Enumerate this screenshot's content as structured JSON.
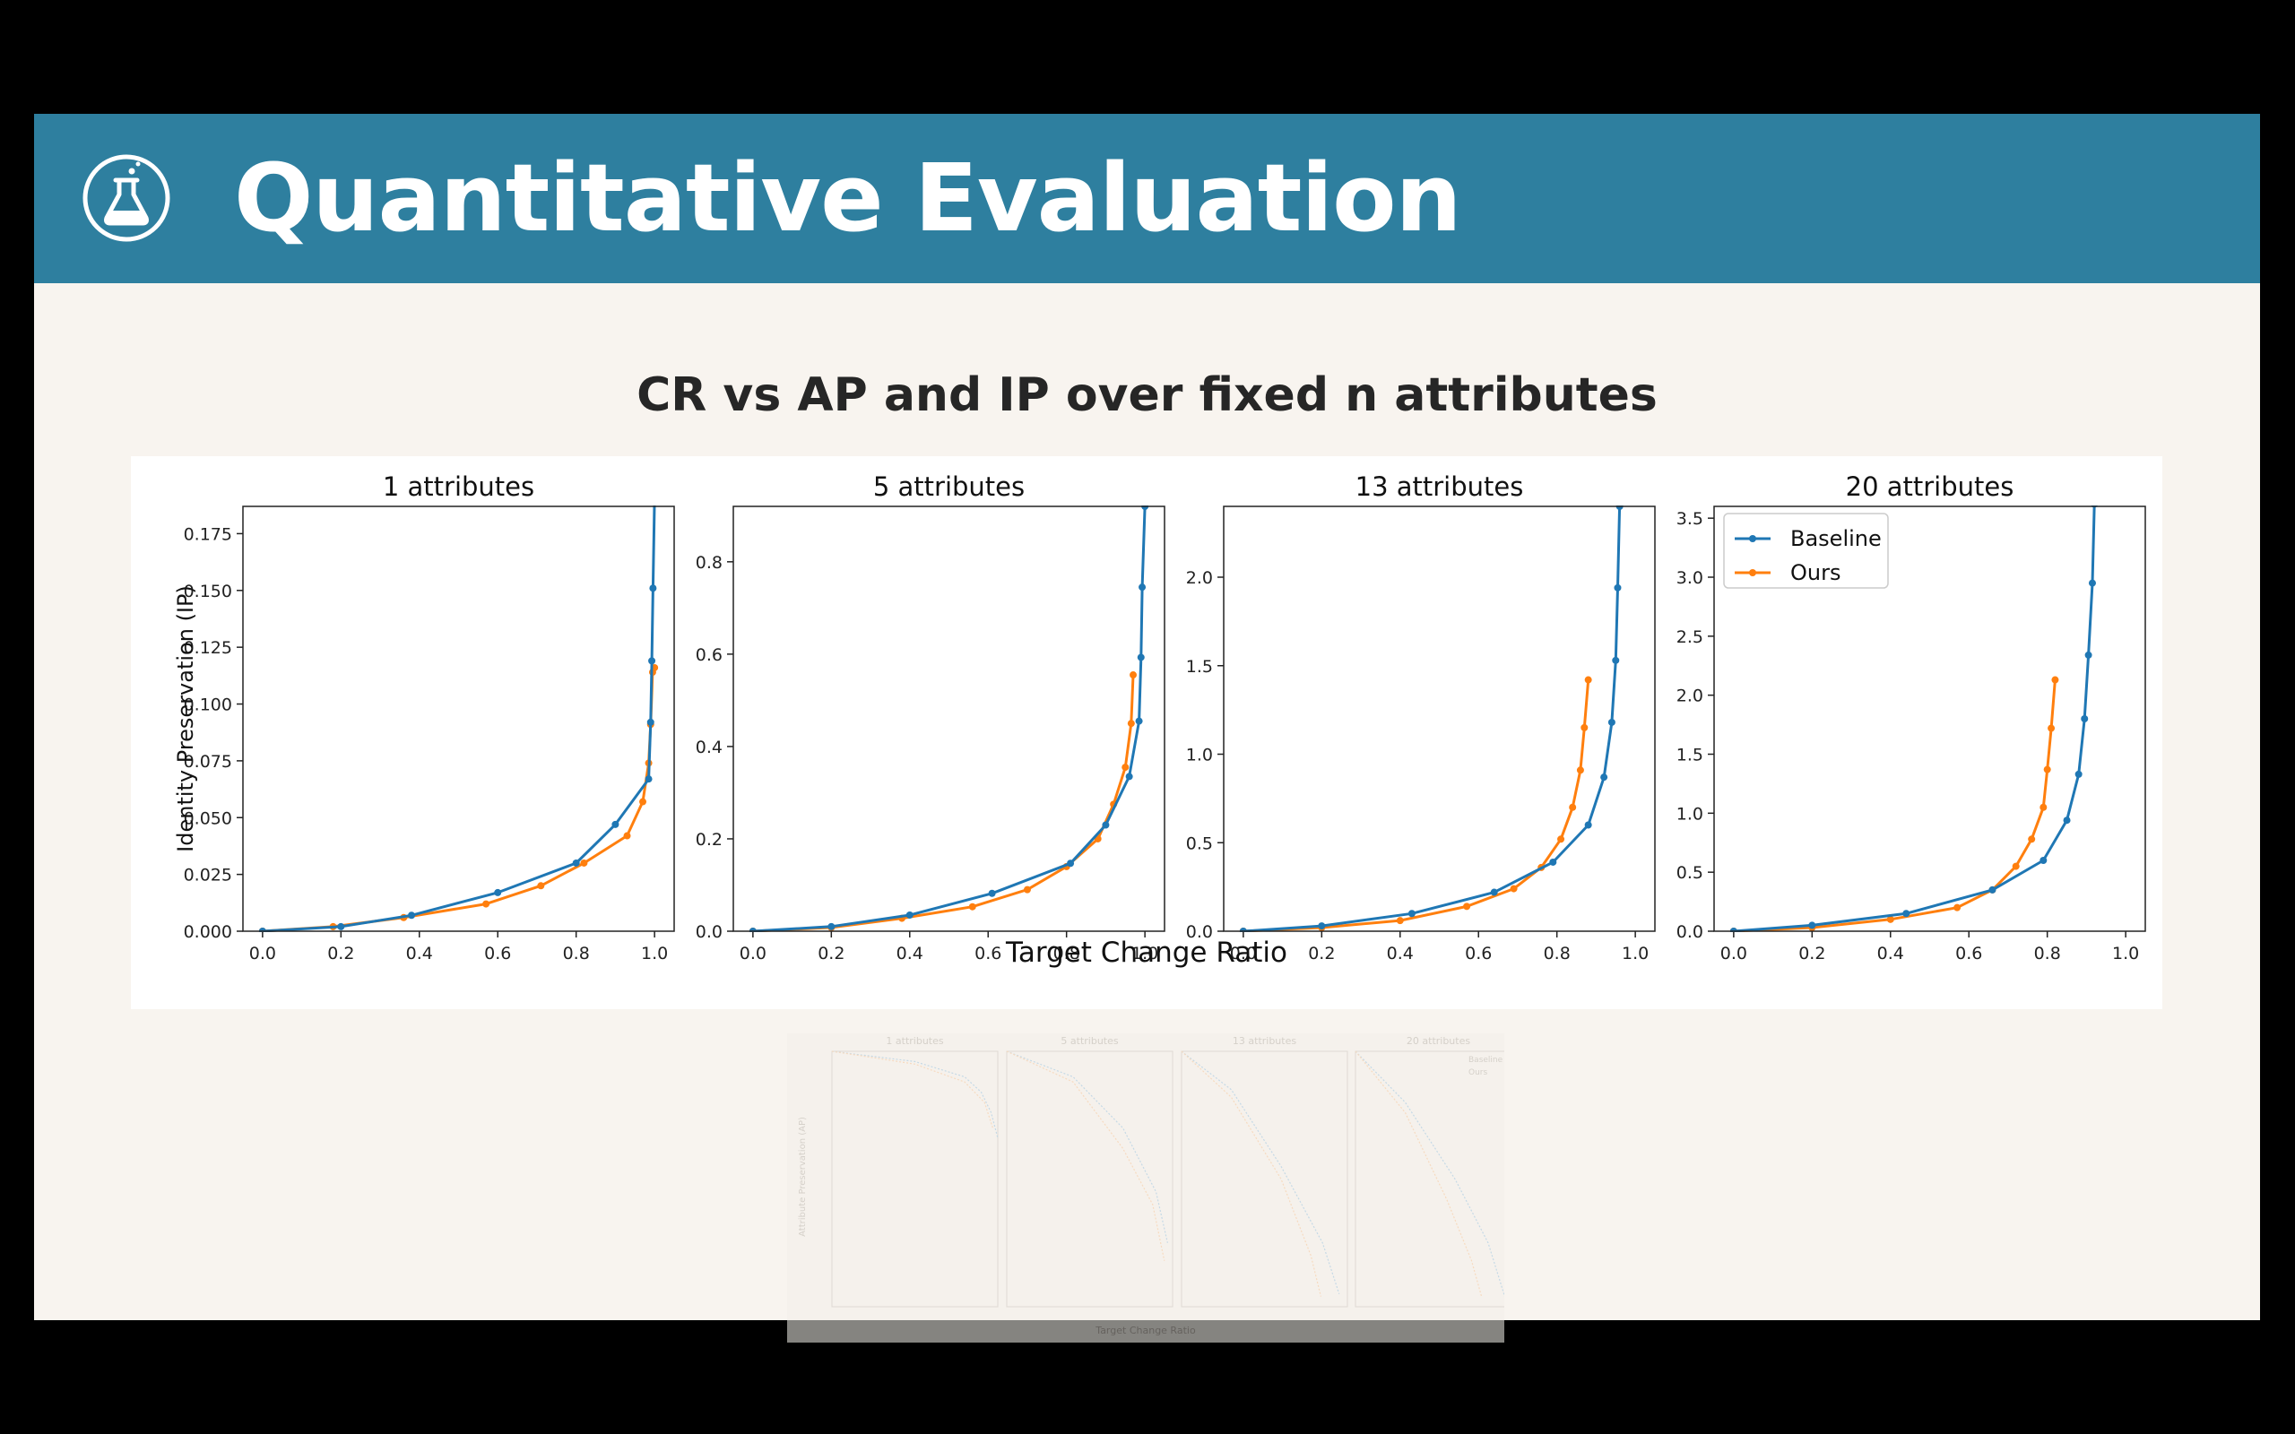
{
  "header": {
    "title": "Quantitative Evaluation",
    "icon": "flask-icon",
    "background_color": "#2e7f9f"
  },
  "section": {
    "title": "CR vs AP and IP over fixed n attributes"
  },
  "colors": {
    "baseline": "#1f77b4",
    "ours": "#ff7f0e",
    "slide_background": "#f8f4ef"
  },
  "chart_data": {
    "type": "line",
    "xlabel": "Target Change Ratio",
    "ylabel": "Identity Preservation (IP)",
    "legend": {
      "placement": "upper-left of last subplot",
      "entries": [
        "Baseline",
        "Ours"
      ]
    },
    "subplots": [
      {
        "title": "1 attributes",
        "xlim": [
          -0.05,
          1.05
        ],
        "ylim": [
          0,
          0.187
        ],
        "xticks": [
          0.0,
          0.2,
          0.4,
          0.6,
          0.8,
          1.0
        ],
        "xtick_labels": [
          "0.0",
          "0.2",
          "0.4",
          "0.6",
          "0.8",
          "1.0"
        ],
        "yticks": [
          0,
          0.025,
          0.05,
          0.075,
          0.1,
          0.125,
          0.15,
          0.175
        ],
        "ytick_labels": [
          "0.000",
          "0.025",
          "0.050",
          "0.075",
          "0.100",
          "0.125",
          "0.150",
          "0.175"
        ],
        "series": [
          {
            "name": "Baseline",
            "x": [
              0.0,
              0.2,
              0.38,
              0.6,
              0.8,
              0.9,
              0.985,
              0.99,
              0.993,
              0.996,
              1.0
            ],
            "y": [
              0.0,
              0.002,
              0.007,
              0.017,
              0.03,
              0.047,
              0.067,
              0.092,
              0.119,
              0.151,
              0.19
            ]
          },
          {
            "name": "Ours",
            "x": [
              0.0,
              0.18,
              0.36,
              0.57,
              0.71,
              0.82,
              0.93,
              0.97,
              0.985,
              0.99,
              0.995,
              1.0
            ],
            "y": [
              0.0,
              0.002,
              0.006,
              0.012,
              0.02,
              0.03,
              0.042,
              0.057,
              0.074,
              0.091,
              0.114,
              0.116
            ]
          }
        ]
      },
      {
        "title": "5 attributes",
        "xlim": [
          -0.05,
          1.05
        ],
        "ylim": [
          0,
          0.92
        ],
        "xticks": [
          0.0,
          0.2,
          0.4,
          0.6,
          0.8,
          1.0
        ],
        "xtick_labels": [
          "0.0",
          "0.2",
          "0.4",
          "0.6",
          "0.8",
          "1.0"
        ],
        "yticks": [
          0.0,
          0.2,
          0.4,
          0.6,
          0.8
        ],
        "ytick_labels": [
          "0.0",
          "0.2",
          "0.4",
          "0.6",
          "0.8"
        ],
        "series": [
          {
            "name": "Baseline",
            "x": [
              0.0,
              0.2,
              0.4,
              0.61,
              0.81,
              0.9,
              0.96,
              0.985,
              0.99,
              0.993,
              1.0
            ],
            "y": [
              0.0,
              0.01,
              0.035,
              0.082,
              0.147,
              0.23,
              0.335,
              0.455,
              0.593,
              0.745,
              0.92
            ]
          },
          {
            "name": "Ours",
            "x": [
              0.0,
              0.2,
              0.38,
              0.56,
              0.7,
              0.8,
              0.88,
              0.92,
              0.95,
              0.965,
              0.97
            ],
            "y": [
              0.0,
              0.008,
              0.028,
              0.053,
              0.09,
              0.14,
              0.2,
              0.275,
              0.355,
              0.45,
              0.555
            ]
          }
        ]
      },
      {
        "title": "13 attributes",
        "xlim": [
          -0.05,
          1.05
        ],
        "ylim": [
          0,
          2.4
        ],
        "xticks": [
          0.0,
          0.2,
          0.4,
          0.6,
          0.8,
          1.0
        ],
        "xtick_labels": [
          "0.0",
          "0.2",
          "0.4",
          "0.6",
          "0.8",
          "1.0"
        ],
        "yticks": [
          0.0,
          0.5,
          1.0,
          1.5,
          2.0
        ],
        "ytick_labels": [
          "0.0",
          "0.5",
          "1.0",
          "1.5",
          "2.0"
        ],
        "series": [
          {
            "name": "Baseline",
            "x": [
              0.0,
              0.2,
              0.43,
              0.64,
              0.79,
              0.88,
              0.92,
              0.94,
              0.95,
              0.955,
              0.96
            ],
            "y": [
              0.0,
              0.03,
              0.1,
              0.22,
              0.39,
              0.6,
              0.87,
              1.18,
              1.53,
              1.94,
              2.4
            ]
          },
          {
            "name": "Ours",
            "x": [
              0.0,
              0.2,
              0.4,
              0.57,
              0.69,
              0.76,
              0.81,
              0.84,
              0.86,
              0.87,
              0.88
            ],
            "y": [
              0.0,
              0.02,
              0.06,
              0.14,
              0.24,
              0.36,
              0.52,
              0.7,
              0.91,
              1.15,
              1.42
            ]
          }
        ]
      },
      {
        "title": "20 attributes",
        "xlim": [
          -0.05,
          1.05
        ],
        "ylim": [
          0,
          3.6
        ],
        "xticks": [
          0.0,
          0.2,
          0.4,
          0.6,
          0.8,
          1.0
        ],
        "xtick_labels": [
          "0.0",
          "0.2",
          "0.4",
          "0.6",
          "0.8",
          "1.0"
        ],
        "yticks": [
          0.0,
          0.5,
          1.0,
          1.5,
          2.0,
          2.5,
          3.0,
          3.5
        ],
        "ytick_labels": [
          "0.0",
          "0.5",
          "1.0",
          "1.5",
          "2.0",
          "2.5",
          "3.0",
          "3.5"
        ],
        "series": [
          {
            "name": "Baseline",
            "x": [
              0.0,
              0.2,
              0.44,
              0.66,
              0.79,
              0.85,
              0.88,
              0.895,
              0.905,
              0.915,
              0.92
            ],
            "y": [
              0.0,
              0.05,
              0.15,
              0.35,
              0.6,
              0.94,
              1.33,
              1.8,
              2.34,
              2.95,
              3.62
            ]
          },
          {
            "name": "Ours",
            "x": [
              0.0,
              0.2,
              0.4,
              0.57,
              0.66,
              0.72,
              0.76,
              0.79,
              0.8,
              0.81,
              0.82
            ],
            "y": [
              0.0,
              0.03,
              0.1,
              0.2,
              0.35,
              0.55,
              0.78,
              1.05,
              1.37,
              1.72,
              2.13
            ]
          }
        ]
      }
    ]
  },
  "faded_preview": {
    "xlabel": "Target Change Ratio",
    "ylabel": "Attribute Preservation (AP)",
    "titles": [
      "1 attributes",
      "5 attributes",
      "13 attributes",
      "20 attributes"
    ],
    "legend_entries": [
      "Baseline",
      "Ours"
    ]
  }
}
